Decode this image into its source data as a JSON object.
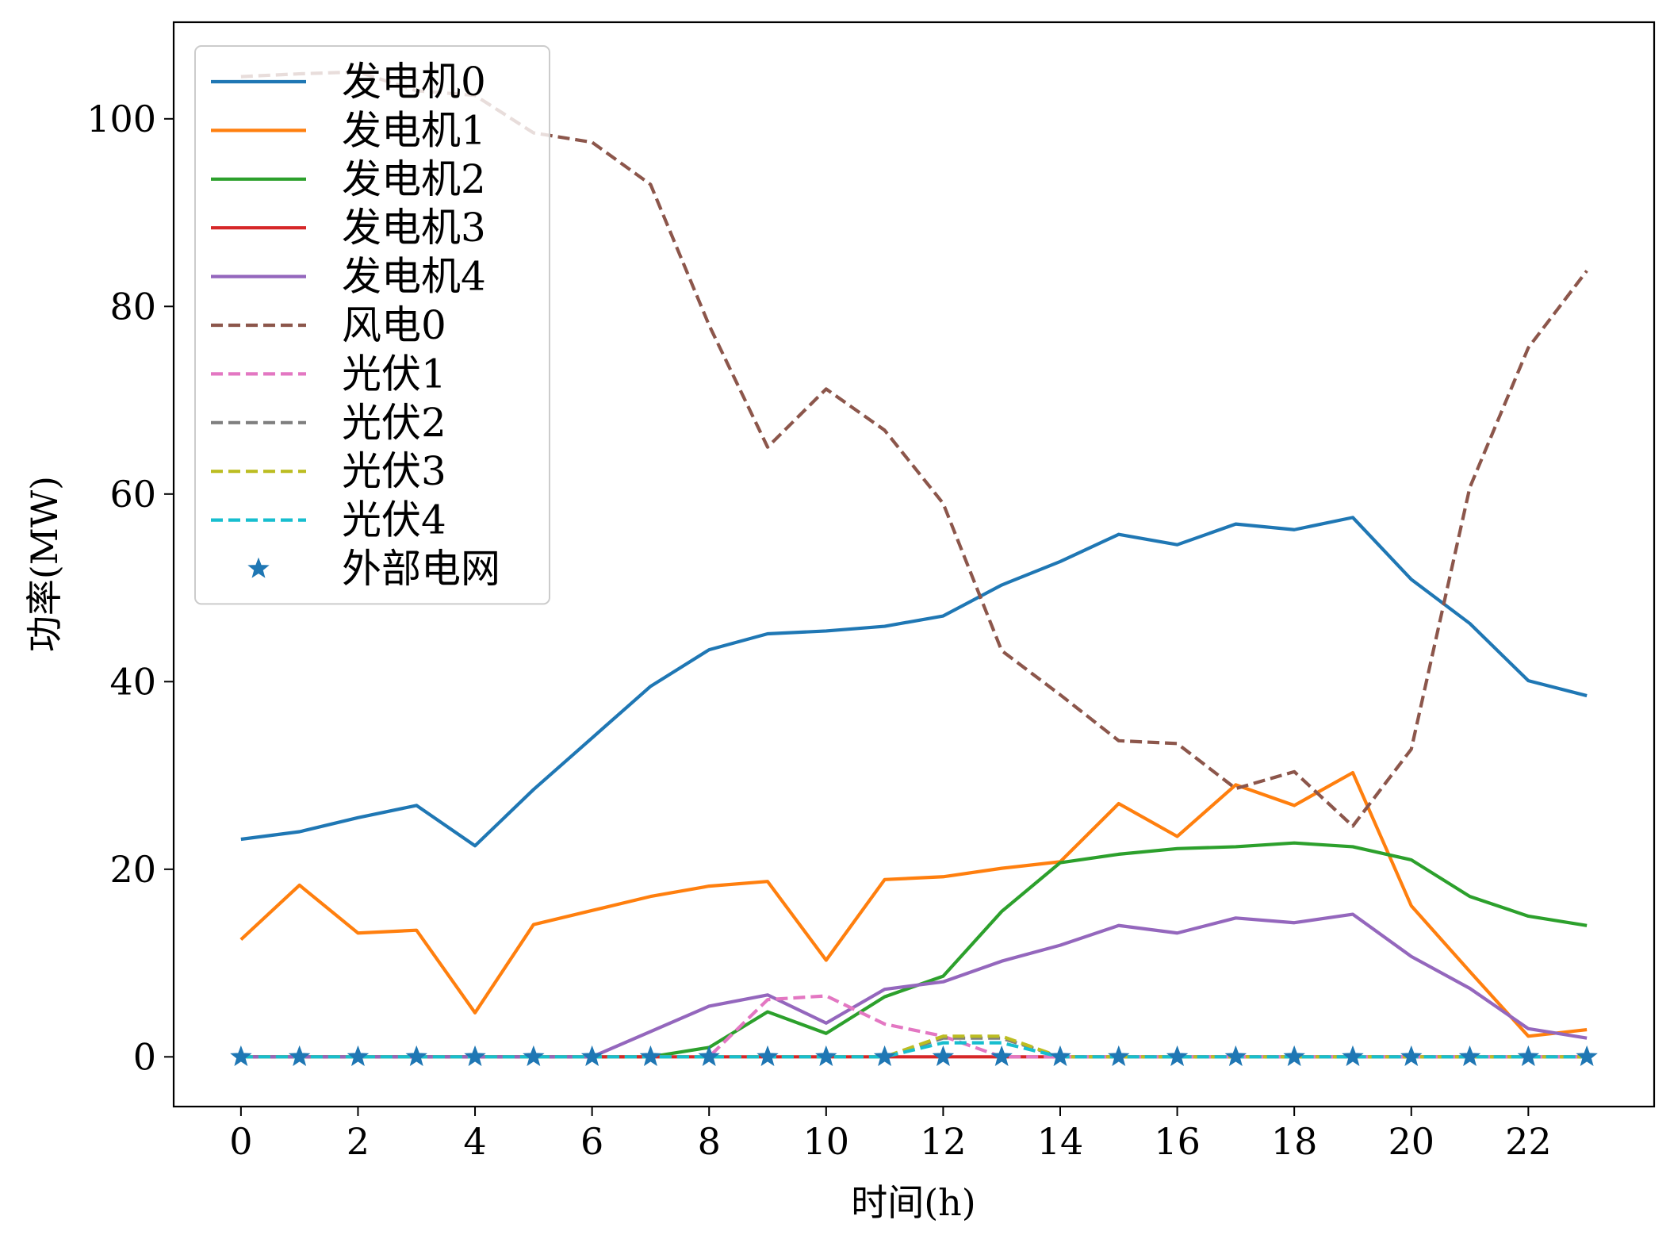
{
  "chart_data": {
    "type": "line",
    "title": "",
    "xlabel": "时间(h)",
    "ylabel": "功率(MW)",
    "xlim": [
      -1.15,
      24.15
    ],
    "ylim": [
      -5.3,
      110.3
    ],
    "xticks": [
      0,
      2,
      4,
      6,
      8,
      10,
      12,
      14,
      16,
      18,
      20,
      22
    ],
    "yticks": [
      0,
      20,
      40,
      60,
      80,
      100
    ],
    "grid": false,
    "legend_position": "top-left",
    "x": [
      0,
      1,
      2,
      3,
      4,
      5,
      6,
      7,
      8,
      9,
      10,
      11,
      12,
      13,
      14,
      15,
      16,
      17,
      18,
      19,
      20,
      21,
      22,
      23
    ],
    "series": [
      {
        "name": "发电机0",
        "color": "#1f77b4",
        "style": "solid",
        "values": [
          23.2,
          24.0,
          25.5,
          26.8,
          22.5,
          28.5,
          34.0,
          39.5,
          43.4,
          45.1,
          45.4,
          45.9,
          47.0,
          50.3,
          52.8,
          55.7,
          54.6,
          56.8,
          56.2,
          57.5,
          50.9,
          46.2,
          40.1,
          38.5
        ]
      },
      {
        "name": "发电机1",
        "color": "#ff7f0e",
        "style": "solid",
        "values": [
          12.5,
          18.3,
          13.2,
          13.5,
          4.7,
          14.1,
          15.6,
          17.1,
          18.2,
          18.7,
          10.3,
          18.9,
          19.2,
          20.1,
          20.8,
          27.0,
          23.5,
          29.0,
          26.8,
          30.3,
          16.1,
          9.1,
          2.2,
          2.9
        ]
      },
      {
        "name": "发电机2",
        "color": "#2ca02c",
        "style": "solid",
        "values": [
          0,
          0,
          0,
          0,
          0,
          0,
          0,
          0,
          1.0,
          4.8,
          2.5,
          6.4,
          8.6,
          15.5,
          20.7,
          21.6,
          22.2,
          22.4,
          22.8,
          22.4,
          21.0,
          17.1,
          15.0,
          14.0
        ]
      },
      {
        "name": "发电机3",
        "color": "#d62728",
        "style": "solid",
        "values": [
          0,
          0,
          0,
          0,
          0,
          0,
          0,
          0,
          0,
          0,
          0,
          0,
          0,
          0,
          0,
          0,
          0,
          0,
          0,
          0,
          0,
          0,
          0,
          0
        ]
      },
      {
        "name": "发电机4",
        "color": "#9467bd",
        "style": "solid",
        "values": [
          0,
          0,
          0,
          0,
          0,
          0,
          0,
          2.7,
          5.4,
          6.6,
          3.6,
          7.2,
          8.0,
          10.2,
          11.9,
          14.0,
          13.2,
          14.8,
          14.3,
          15.2,
          10.7,
          7.3,
          3.0,
          2.0
        ]
      },
      {
        "name": "风电0",
        "color": "#8c564b",
        "style": "dashed",
        "values": [
          104.5,
          104.8,
          105.0,
          103.0,
          102.5,
          98.5,
          97.5,
          93.0,
          78.0,
          65.0,
          71.2,
          66.8,
          59.0,
          43.3,
          38.6,
          33.7,
          33.4,
          28.6,
          30.4,
          24.6,
          32.8,
          60.7,
          75.6,
          83.8
        ]
      },
      {
        "name": "光伏1",
        "color": "#e377c2",
        "style": "dashed",
        "values": [
          0,
          0,
          0,
          0,
          0,
          0,
          0,
          0,
          0,
          6.1,
          6.5,
          3.5,
          2.2,
          0,
          0,
          0,
          0,
          0,
          0,
          0,
          0,
          0,
          0,
          0
        ]
      },
      {
        "name": "光伏2",
        "color": "#7f7f7f",
        "style": "dashed",
        "values": [
          0,
          0,
          0,
          0,
          0,
          0,
          0,
          0,
          0,
          0,
          0,
          0,
          2.0,
          2.0,
          0,
          0,
          0,
          0,
          0,
          0,
          0,
          0,
          0,
          0
        ]
      },
      {
        "name": "光伏3",
        "color": "#bcbd22",
        "style": "dashed",
        "values": [
          0,
          0,
          0,
          0,
          0,
          0,
          0,
          0,
          0,
          0,
          0,
          0,
          2.2,
          2.2,
          0,
          0,
          0,
          0,
          0,
          0,
          0,
          0,
          0,
          0
        ]
      },
      {
        "name": "光伏4",
        "color": "#17becf",
        "style": "dashed",
        "values": [
          0,
          0,
          0,
          0,
          0,
          0,
          0,
          0,
          0,
          0,
          0,
          0,
          1.5,
          1.5,
          0,
          0,
          0,
          0,
          0,
          0,
          0,
          0,
          0,
          0
        ]
      },
      {
        "name": "外部电网",
        "color": "#1f77b4",
        "style": "marker",
        "values": [
          0,
          0,
          0,
          0,
          0,
          0,
          0,
          0,
          0,
          0,
          0,
          0,
          0,
          0,
          0,
          0,
          0,
          0,
          0,
          0,
          0,
          0,
          0,
          0
        ]
      }
    ]
  }
}
